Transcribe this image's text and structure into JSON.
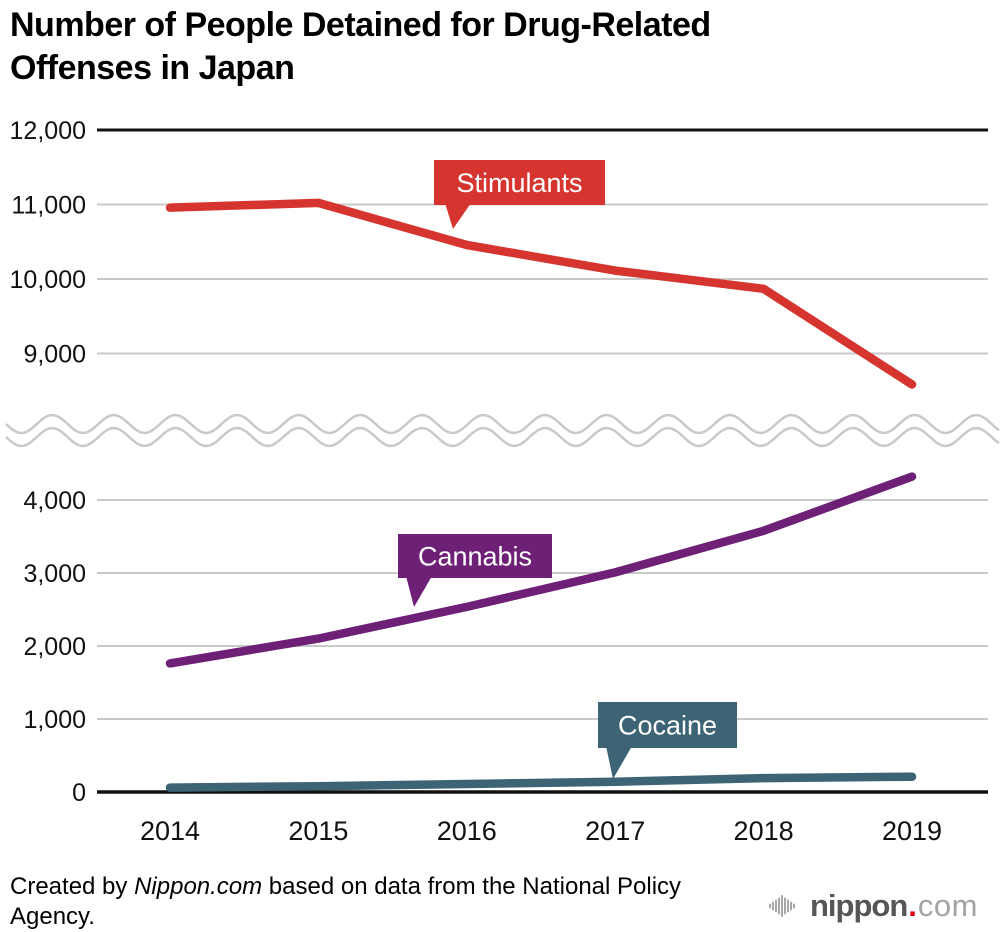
{
  "title_line1": "Number of People Detained for Drug-Related",
  "title_line2": "Offenses in Japan",
  "footer": {
    "prefix": "Created by ",
    "source": "Nippon.com",
    "suffix": " based on data from the National Policy Agency."
  },
  "logo": {
    "name": "nippon",
    "dot": ".",
    "tld": "com"
  },
  "chart_data": {
    "type": "line",
    "title": "Number of People Detained for Drug-Related Offenses in Japan",
    "x": [
      2014,
      2015,
      2016,
      2017,
      2018,
      2019
    ],
    "series": [
      {
        "name": "Stimulants",
        "axis": "upper",
        "color": "#d6352f",
        "values": [
          10958,
          11022,
          10457,
          10113,
          9868,
          8584
        ]
      },
      {
        "name": "Cannabis",
        "axis": "lower",
        "color": "#6e2077",
        "values": [
          1761,
          2101,
          2536,
          3008,
          3578,
          4321
        ]
      },
      {
        "name": "Cocaine",
        "axis": "lower",
        "color": "#3d6475",
        "values": [
          60,
          80,
          110,
          140,
          190,
          210
        ]
      }
    ],
    "y_axis": {
      "break": true,
      "upper_ticks": [
        "12,000",
        "11,000",
        "10,000",
        "9,000"
      ],
      "upper_tick_values": [
        12000,
        11000,
        10000,
        9000
      ],
      "lower_ticks": [
        "4,000",
        "3,000",
        "2,000",
        "1,000",
        "0"
      ],
      "lower_tick_values": [
        4000,
        3000,
        2000,
        1000,
        0
      ],
      "upper_range": [
        9000,
        12000
      ],
      "lower_range": [
        0,
        4000
      ]
    },
    "grid": true,
    "legend_position": "callout-labels-on-lines",
    "colors": {
      "grid": "#c9c9c9",
      "axis": "#111111",
      "break_wave": "#c9c9c9",
      "label_text": "#111111",
      "callout_text": "#ffffff"
    }
  }
}
